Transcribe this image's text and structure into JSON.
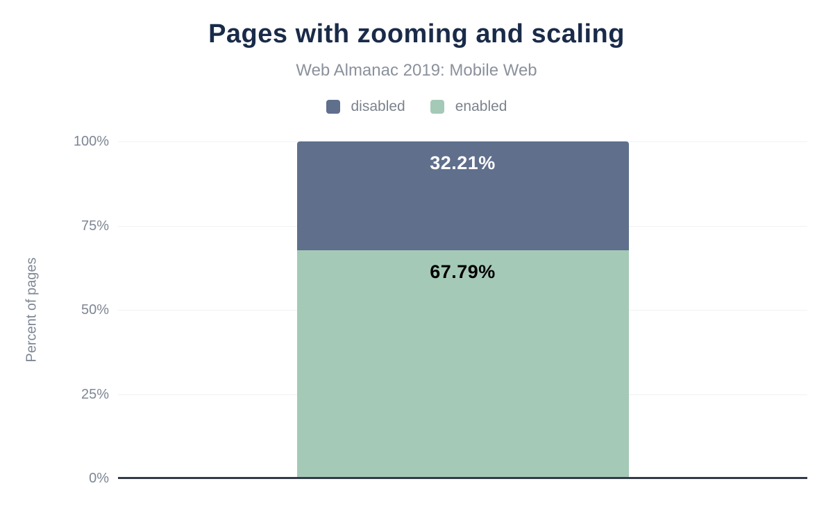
{
  "chart_data": {
    "type": "bar",
    "stacked": true,
    "title": "Pages with zooming and scaling",
    "subtitle": "Web Almanac 2019: Mobile Web",
    "ylabel": "Percent of pages",
    "xlabel": "",
    "ylim": [
      0,
      100
    ],
    "yticks": [
      "100%",
      "75%",
      "50%",
      "25%",
      "0%"
    ],
    "grid": true,
    "legend_position": "top",
    "series": [
      {
        "name": "disabled",
        "value": 32.21,
        "label": "32.21%",
        "color": "#5f6f8c",
        "label_color": "#ffffff"
      },
      {
        "name": "enabled",
        "value": 67.79,
        "label": "67.79%",
        "color": "#a5c9b7",
        "label_color": "#000000"
      }
    ],
    "colors": {
      "title": "#1a2b49",
      "subtitle": "#8b919c",
      "axis_text": "#7e8694",
      "axis_line": "#343b47",
      "gridline": "#eff1f3",
      "background": "#ffffff"
    }
  }
}
